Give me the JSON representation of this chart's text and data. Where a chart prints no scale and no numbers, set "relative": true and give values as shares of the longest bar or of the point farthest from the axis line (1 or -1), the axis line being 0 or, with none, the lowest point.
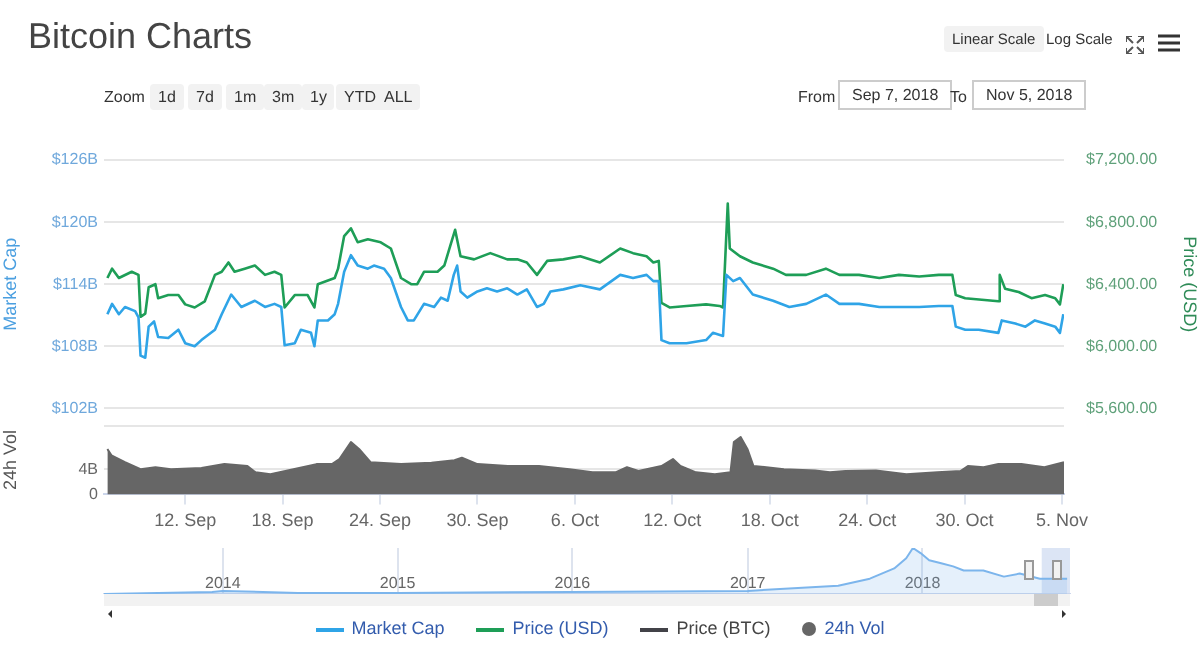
{
  "chart_data": [
    {
      "type": "line",
      "title": "Bitcoin Charts",
      "ylabel": "Market Cap",
      "y2label": "Price (USD)",
      "annotations": [
        "Zoom",
        "1d",
        "7d",
        "1m",
        "3m",
        "1y",
        "YTD",
        "ALL",
        "From",
        "Sep 7, 2018",
        "To",
        "Nov 5, 2018",
        "Linear Scale",
        "Log Scale"
      ],
      "xlim": [
        "2018-09-07T00:00",
        "2018-11-05T03:00"
      ],
      "ylim": [
        102,
        126
      ],
      "yticks": [
        {
          "value": 102,
          "label": "$102B"
        },
        {
          "value": 108,
          "label": "$108B"
        },
        {
          "value": 114,
          "label": "$114B"
        },
        {
          "value": 120,
          "label": "$120B"
        },
        {
          "value": 126,
          "label": "$126B"
        }
      ],
      "y2lim": [
        5600,
        7200
      ],
      "y2ticks": [
        {
          "value": 5600,
          "label": "$5,600.00"
        },
        {
          "value": 6000,
          "label": "$6,000.00"
        },
        {
          "value": 6400,
          "label": "$6,400.00"
        },
        {
          "value": 6800,
          "label": "$6,800.00"
        },
        {
          "value": 7200,
          "label": "$7,200.00"
        }
      ],
      "grid": "y",
      "legend": "bottom",
      "tick_labels": "y",
      "marker": "none",
      "series": [
        {
          "name": "Market Cap",
          "color": "#2fa4e7",
          "x": [
            "2018-09-07T05:00",
            "2018-09-07T12:00",
            "2018-09-07T22:00",
            "2018-09-08T07:00",
            "2018-09-08T22:00",
            "2018-09-09T03:00",
            "2018-09-09T06:00",
            "2018-09-09T13:00",
            "2018-09-09T18:00",
            "2018-09-10T02:00",
            "2018-09-10T08:00",
            "2018-09-10T23:00",
            "2018-09-11T14:00",
            "2018-09-12T00:00",
            "2018-09-12T14:00",
            "2018-09-13T00:00",
            "2018-09-13T20:00",
            "2018-09-14T06:00",
            "2018-09-14T20:00",
            "2018-09-15T11:00",
            "2018-09-16T07:00",
            "2018-09-16T22:00",
            "2018-09-17T12:00",
            "2018-09-17T22:00",
            "2018-09-18T03:00",
            "2018-09-18T18:00",
            "2018-09-19T03:00",
            "2018-09-19T18:00",
            "2018-09-19T23:00",
            "2018-09-20T04:00",
            "2018-09-20T19:00",
            "2018-09-21T05:00",
            "2018-09-21T10:00",
            "2018-09-21T19:00",
            "2018-09-22T05:00",
            "2018-09-22T15:00",
            "2018-09-23T06:00",
            "2018-09-23T15:00",
            "2018-09-24T06:00",
            "2018-09-24T16:00",
            "2018-09-25T07:00",
            "2018-09-25T17:00",
            "2018-09-26T02:00",
            "2018-09-26T17:00",
            "2018-09-27T08:00",
            "2018-09-27T18:00",
            "2018-09-28T04:00",
            "2018-09-28T13:00",
            "2018-09-28T18:00",
            "2018-09-28T23:00",
            "2018-09-29T09:00",
            "2018-09-30T00:00",
            "2018-09-30T14:00",
            "2018-10-01T05:00",
            "2018-10-01T20:00",
            "2018-10-02T11:00",
            "2018-10-03T01:00",
            "2018-10-03T16:00",
            "2018-10-04T02:00",
            "2018-10-04T12:00",
            "2018-10-05T07:00",
            "2018-10-06T08:00",
            "2018-10-07T13:00",
            "2018-10-08T19:00",
            "2018-10-09T14:00",
            "2018-10-10T10:00",
            "2018-10-10T20:00",
            "2018-10-11T04:00",
            "2018-10-11T08:00",
            "2018-10-11T20:00",
            "2018-10-12T21:00",
            "2018-10-14T02:00",
            "2018-10-14T12:00",
            "2018-10-15T03:00",
            "2018-10-15T08:00",
            "2018-10-15T18:00",
            "2018-10-16T04:00",
            "2018-10-16T23:00",
            "2018-10-18T05:00",
            "2018-10-19T05:00",
            "2018-10-20T06:00",
            "2018-10-21T11:00",
            "2018-10-22T07:00",
            "2018-10-23T12:00",
            "2018-10-24T18:00",
            "2018-10-25T23:00",
            "2018-10-27T05:00",
            "2018-10-28T10:00",
            "2018-10-29T06:00",
            "2018-10-29T11:00",
            "2018-10-30T01:00",
            "2018-10-30T21:00",
            "2018-11-01T02:00",
            "2018-11-01T07:00",
            "2018-11-02T03:00",
            "2018-11-02T18:00",
            "2018-11-03T08:00",
            "2018-11-03T23:00",
            "2018-11-04T14:00",
            "2018-11-04T21:00",
            "2018-11-05T02:00"
          ],
          "values": [
            111.1,
            112.1,
            111.1,
            111.8,
            111.4,
            110.8,
            107.1,
            106.9,
            109.9,
            110.4,
            108.9,
            108.8,
            109.6,
            108.3,
            108.0,
            108.6,
            109.6,
            111.1,
            113.0,
            111.8,
            112.4,
            111.8,
            112.1,
            111.8,
            108.1,
            108.3,
            109.6,
            109.3,
            108.0,
            110.5,
            110.5,
            111.1,
            112.1,
            115.2,
            116.8,
            115.8,
            115.5,
            115.8,
            115.5,
            114.6,
            111.8,
            110.5,
            110.5,
            112.1,
            111.8,
            112.7,
            112.4,
            114.9,
            115.8,
            113.3,
            112.7,
            113.3,
            113.6,
            113.3,
            113.6,
            113.0,
            113.5,
            111.8,
            112.1,
            113.3,
            113.5,
            113.9,
            113.5,
            114.9,
            114.6,
            114.9,
            114.3,
            114.3,
            108.6,
            108.3,
            108.3,
            108.6,
            109.3,
            109.0,
            114.9,
            114.3,
            114.6,
            113.0,
            112.4,
            111.8,
            112.1,
            113.0,
            112.1,
            112.1,
            111.8,
            111.8,
            111.8,
            111.9,
            111.9,
            109.9,
            109.6,
            109.6,
            109.3,
            110.5,
            110.2,
            109.9,
            110.5,
            110.2,
            109.9,
            109.3,
            111.1
          ]
        },
        {
          "name": "Price (USD)",
          "color": "#1e9e57",
          "axis": "y2",
          "x": [
            "2018-09-07T05:00",
            "2018-09-07T12:00",
            "2018-09-07T22:00",
            "2018-09-08T17:00",
            "2018-09-09T03:00",
            "2018-09-09T06:00",
            "2018-09-09T13:00",
            "2018-09-09T18:00",
            "2018-09-10T04:00",
            "2018-09-10T08:00",
            "2018-09-10T23:00",
            "2018-09-11T14:00",
            "2018-09-12T00:00",
            "2018-09-12T14:00",
            "2018-09-13T05:00",
            "2018-09-13T20:00",
            "2018-09-14T06:00",
            "2018-09-14T16:00",
            "2018-09-15T01:00",
            "2018-09-15T16:00",
            "2018-09-16T07:00",
            "2018-09-16T22:00",
            "2018-09-17T12:00",
            "2018-09-17T22:00",
            "2018-09-18T03:00",
            "2018-09-18T18:00",
            "2018-09-19T13:00",
            "2018-09-19T23:00",
            "2018-09-20T04:00",
            "2018-09-21T05:00",
            "2018-09-21T10:00",
            "2018-09-21T19:00",
            "2018-09-22T05:00",
            "2018-09-22T15:00",
            "2018-09-23T06:00",
            "2018-09-24T01:00",
            "2018-09-24T16:00",
            "2018-09-25T07:00",
            "2018-09-25T22:00",
            "2018-09-26T07:00",
            "2018-09-26T17:00",
            "2018-09-27T13:00",
            "2018-09-27T23:00",
            "2018-09-28T08:00",
            "2018-09-28T15:00",
            "2018-09-28T23:00",
            "2018-09-29T19:00",
            "2018-09-30T19:00",
            "2018-10-01T20:00",
            "2018-10-02T11:00",
            "2018-10-03T01:00",
            "2018-10-03T16:00",
            "2018-10-04T07:00",
            "2018-10-05T07:00",
            "2018-10-06T08:00",
            "2018-10-07T13:00",
            "2018-10-08T19:00",
            "2018-10-09T14:00",
            "2018-10-10T10:00",
            "2018-10-10T20:00",
            "2018-10-11T04:00",
            "2018-10-11T08:00",
            "2018-10-11T20:00",
            "2018-10-12T21:00",
            "2018-10-14T02:00",
            "2018-10-14T22:00",
            "2018-10-15T03:00",
            "2018-10-15T10:00",
            "2018-10-15T13:00",
            "2018-10-16T04:00",
            "2018-10-16T23:00",
            "2018-10-18T05:00",
            "2018-10-19T00:00",
            "2018-10-20T06:00",
            "2018-10-21T11:00",
            "2018-10-22T07:00",
            "2018-10-23T12:00",
            "2018-10-24T18:00",
            "2018-10-25T23:00",
            "2018-10-27T05:00",
            "2018-10-28T10:00",
            "2018-10-29T06:00",
            "2018-10-29T11:00",
            "2018-10-30T01:00",
            "2018-11-01T02:00",
            "2018-11-01T04:00",
            "2018-11-01T12:00",
            "2018-11-02T08:00",
            "2018-11-03T03:00",
            "2018-11-03T23:00",
            "2018-11-04T14:00",
            "2018-11-04T21:00",
            "2018-11-05T02:00"
          ],
          "values": [
            6440,
            6500,
            6440,
            6480,
            6460,
            6190,
            6210,
            6380,
            6400,
            6310,
            6330,
            6330,
            6270,
            6250,
            6290,
            6460,
            6480,
            6540,
            6480,
            6500,
            6520,
            6460,
            6480,
            6460,
            6250,
            6330,
            6330,
            6250,
            6400,
            6440,
            6500,
            6710,
            6760,
            6670,
            6690,
            6670,
            6630,
            6440,
            6400,
            6400,
            6480,
            6480,
            6520,
            6650,
            6750,
            6580,
            6560,
            6600,
            6560,
            6560,
            6540,
            6460,
            6550,
            6560,
            6580,
            6540,
            6630,
            6600,
            6580,
            6540,
            6550,
            6280,
            6250,
            6260,
            6270,
            6260,
            6250,
            6920,
            6630,
            6580,
            6540,
            6500,
            6460,
            6460,
            6500,
            6460,
            6460,
            6440,
            6460,
            6450,
            6460,
            6460,
            6330,
            6310,
            6290,
            6460,
            6370,
            6350,
            6310,
            6330,
            6310,
            6270,
            6400
          ]
        },
        {
          "name": "Price (BTC)",
          "color": "#434348"
        }
      ]
    },
    {
      "type": "area",
      "ylabel": "24h Vol",
      "xlim": [
        "2018-09-07T00:00",
        "2018-11-05T03:00"
      ],
      "xticks": [
        {
          "value": "2018-09-12",
          "label": "12. Sep"
        },
        {
          "value": "2018-09-18",
          "label": "18. Sep"
        },
        {
          "value": "2018-09-24",
          "label": "24. Sep"
        },
        {
          "value": "2018-09-30",
          "label": "30. Sep"
        },
        {
          "value": "2018-10-06",
          "label": "6. Oct"
        },
        {
          "value": "2018-10-12",
          "label": "12. Oct"
        },
        {
          "value": "2018-10-18",
          "label": "18. Oct"
        },
        {
          "value": "2018-10-24",
          "label": "24. Oct"
        },
        {
          "value": "2018-10-30",
          "label": "30. Oct"
        },
        {
          "value": "2018-11-05",
          "label": "5. Nov"
        }
      ],
      "ylim": [
        0,
        10.9
      ],
      "yticks": [
        0,
        {
          "value": 4,
          "label": "4B"
        },
        {
          "value": 10.9,
          "label": null
        }
      ],
      "grid": "y",
      "legend": "bottom",
      "series": [
        {
          "name": "24h Vol",
          "color": "#666666",
          "x": [
            "2018-09-07T05:00",
            "2018-09-07T11:00",
            "2018-09-08T07:00",
            "2018-09-09T06:00",
            "2018-09-10T04:00",
            "2018-09-11T03:00",
            "2018-09-13T00:00",
            "2018-09-14T10:00",
            "2018-09-15T20:00",
            "2018-09-16T08:00",
            "2018-09-17T06:00",
            "2018-09-18T16:00",
            "2018-09-20T02:00",
            "2018-09-21T01:00",
            "2018-09-21T12:00",
            "2018-09-22T05:00",
            "2018-09-22T17:00",
            "2018-09-23T10:00",
            "2018-09-25T07:00",
            "2018-09-27T04:00",
            "2018-09-28T14:00",
            "2018-09-29T01:00",
            "2018-09-30T00:00",
            "2018-10-01T21:00",
            "2018-10-03T19:00",
            "2018-10-05T16:00",
            "2018-10-07T02:00",
            "2018-10-08T12:00",
            "2018-10-09T05:00",
            "2018-10-09T22:00",
            "2018-10-11T08:00",
            "2018-10-12T01:00",
            "2018-10-12T12:00",
            "2018-10-13T11:00",
            "2018-10-14T15:00",
            "2018-10-15T14:00",
            "2018-10-15T19:00",
            "2018-10-16T05:00",
            "2018-10-16T15:00",
            "2018-10-17T00:00",
            "2018-10-18T21:00",
            "2018-10-20T19:00",
            "2018-10-21T17:00",
            "2018-10-22T16:00",
            "2018-10-24T13:00",
            "2018-10-26T10:00",
            "2018-10-28T08:00",
            "2018-10-29T18:00",
            "2018-10-30T05:00",
            "2018-10-31T04:00",
            "2018-11-01T02:00",
            "2018-11-02T12:00",
            "2018-11-03T22:00",
            "2018-11-05T03:00"
          ],
          "values": [
            7.2,
            6.2,
            5.1,
            4.0,
            4.3,
            4.0,
            4.2,
            4.8,
            4.5,
            3.5,
            3.2,
            4.0,
            4.8,
            4.8,
            5.6,
            8.3,
            7.2,
            5.1,
            4.8,
            5.0,
            5.4,
            5.8,
            4.8,
            4.5,
            4.5,
            4.0,
            3.5,
            3.5,
            4.3,
            3.7,
            4.5,
            5.6,
            4.5,
            3.5,
            3.2,
            3.5,
            8.3,
            9.1,
            7.2,
            4.5,
            4.0,
            3.8,
            3.5,
            3.7,
            3.8,
            3.2,
            3.5,
            3.7,
            4.5,
            4.3,
            4.8,
            4.8,
            4.3,
            5.1
          ]
        }
      ]
    },
    {
      "type": "area",
      "relative": true,
      "tick_labels": "x",
      "grid": "x",
      "xlim": [
        "2013-04-28",
        "2018-11-05"
      ],
      "xticks": [
        {
          "value": "2014-01-01",
          "label": "2014"
        },
        {
          "value": "2015-01-01",
          "label": "2015"
        },
        {
          "value": "2016-01-01",
          "label": "2016"
        },
        {
          "value": "2017-01-01",
          "label": "2017"
        },
        {
          "value": "2018-01-01",
          "label": "2018"
        }
      ],
      "bands": [
        {
          "axis": "x",
          "from": "2018-09-07",
          "to": "2018-11-05",
          "color": "#c5d3ee"
        }
      ],
      "series": [
        {
          "color": "#7cb5ec",
          "x": [
            "2013-04-28",
            "2013-12-10",
            "2014-01-01",
            "2014-06-07",
            "2015-01-01",
            "2016-01-01",
            "2017-01-01",
            "2017-04-16",
            "2017-07-09",
            "2017-09-13",
            "2017-11-03",
            "2017-11-28",
            "2017-12-12",
            "2017-12-28",
            "2018-01-15",
            "2018-02-09",
            "2018-03-06",
            "2018-03-28",
            "2018-05-08",
            "2018-06-20",
            "2018-07-23",
            "2018-09-03",
            "2018-10-30"
          ],
          "values": [
            0,
            0.044,
            0.067,
            0.022,
            0.022,
            0.044,
            0.067,
            0.133,
            0.178,
            0.333,
            0.556,
            0.778,
            1,
            0.889,
            0.733,
            0.667,
            0.6,
            0.511,
            0.511,
            0.378,
            0.444,
            0.333,
            0.333
          ]
        }
      ]
    }
  ]
}
